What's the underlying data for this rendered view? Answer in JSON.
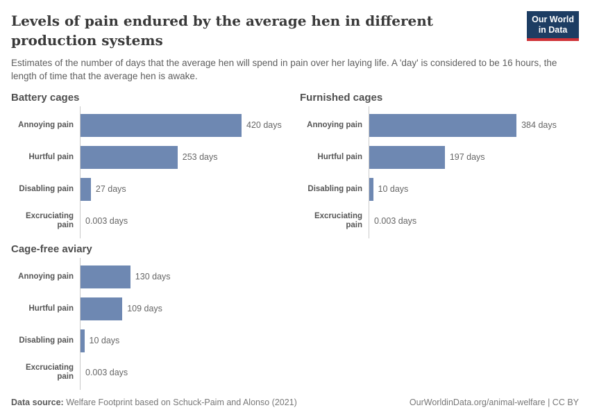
{
  "header": {
    "title": "Levels of pain endured by the average hen in different production systems",
    "subtitle": "Estimates of the number of days that the average hen will spend in pain over her laying life. A 'day' is considered to be 16 hours, the length of time that the average hen is awake.",
    "logo": {
      "line1": "Our World",
      "line2": "in Data",
      "bg_color": "#1d3d63",
      "accent_color": "#cf3137",
      "text_color": "#ffffff"
    }
  },
  "chart_data": [
    {
      "type": "bar",
      "title": "Battery cages",
      "orientation": "horizontal",
      "categories": [
        "Annoying pain",
        "Hurtful pain",
        "Disabling pain",
        "Excruciating pain"
      ],
      "values": [
        420,
        253,
        27,
        0.003
      ],
      "value_labels": [
        "420 days",
        "253 days",
        "27 days",
        "0.003 days"
      ],
      "unit": "days",
      "xlim": [
        0,
        420
      ],
      "grid": false,
      "bar_color": "#6e88b2",
      "axis_color": "#c9c9c9"
    },
    {
      "type": "bar",
      "title": "Furnished cages",
      "orientation": "horizontal",
      "categories": [
        "Annoying pain",
        "Hurtful pain",
        "Disabling pain",
        "Excruciating pain"
      ],
      "values": [
        384,
        197,
        10,
        0.003
      ],
      "value_labels": [
        "384 days",
        "197 days",
        "10 days",
        "0.003 days"
      ],
      "unit": "days",
      "xlim": [
        0,
        420
      ],
      "grid": false,
      "bar_color": "#6e88b2",
      "axis_color": "#c9c9c9"
    },
    {
      "type": "bar",
      "title": "Cage-free aviary",
      "orientation": "horizontal",
      "categories": [
        "Annoying pain",
        "Hurtful pain",
        "Disabling pain",
        "Excruciating pain"
      ],
      "values": [
        130,
        109,
        10,
        0.003
      ],
      "value_labels": [
        "130 days",
        "109 days",
        "10 days",
        "0.003 days"
      ],
      "unit": "days",
      "xlim": [
        0,
        420
      ],
      "grid": false,
      "bar_color": "#6e88b2",
      "axis_color": "#c9c9c9"
    }
  ],
  "footer": {
    "datasource_label": "Data source:",
    "datasource_text": " Welfare Footprint based on Schuck-Paim and Alonso (2021)",
    "credit": "OurWorldinData.org/animal-welfare | CC BY"
  }
}
